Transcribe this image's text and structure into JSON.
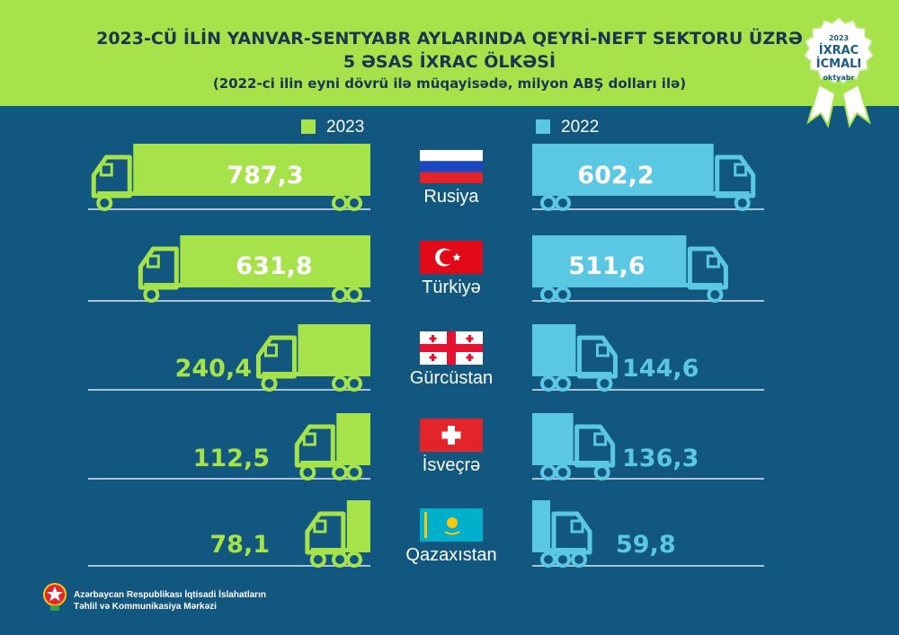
{
  "header": {
    "title_line1": "2023-CÜ İLİN YANVAR-SENTYABR AYLARINDA QEYRİ-NEFT SEKTORU ÜZRƏ",
    "title_line2": "5 ƏSAS İXRAC ÖLKƏSİ",
    "subtitle": "(2022-ci ilin eyni dövrü ilə müqayisədə, milyon ABŞ dolları ilə)"
  },
  "badge": {
    "year": "2023",
    "line1": "İXRAC",
    "line2": "İCMALI",
    "line3": "oktyabr"
  },
  "colors": {
    "series_2023": "#a6e34a",
    "series_2022": "#5ac7e3",
    "background": "#12577f",
    "header": "#a6e34a",
    "title": "#1a3550"
  },
  "chart_data": {
    "type": "bar",
    "categories": [
      "Rusiya",
      "Türkiyə",
      "Gürcüstan",
      "İsveçrə",
      "Qazaxıstan"
    ],
    "flags": [
      "russia-flag",
      "turkey-flag",
      "georgia-flag",
      "switzerland-flag",
      "kazakhstan-flag"
    ],
    "series": [
      {
        "name": "2023",
        "values": [
          787.3,
          631.8,
          240.4,
          112.5,
          78.1
        ],
        "labels": [
          "787,3",
          "631,8",
          "240,4",
          "112,5",
          "78,1"
        ]
      },
      {
        "name": "2022",
        "values": [
          602.2,
          511.6,
          144.6,
          136.3,
          59.8
        ],
        "labels": [
          "602,2",
          "511,6",
          "144,6",
          "136,3",
          "59,8"
        ]
      }
    ],
    "title": "2023-CÜ İLİN YANVAR-SENTYABR AYLARINDA QEYRİ-NEFT SEKTORU ÜZRƏ 5 ƏSAS İXRAC ÖLKƏSİ",
    "subtitle": "(2022-ci ilin eyni dövrü ilə müqayisədə, milyon ABŞ dolları ilə)",
    "legend": "top-center"
  },
  "footer": {
    "line1": "Azərbaycan Respublikası İqtisadi İslahatların",
    "line2": "Təhlil və Kommunikasiya Mərkəzi"
  }
}
